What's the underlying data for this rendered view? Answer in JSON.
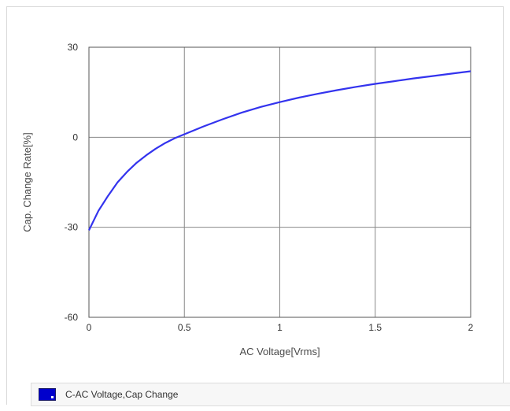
{
  "chart_data": {
    "type": "line",
    "title": "",
    "xlabel": "AC Voltage[Vrms]",
    "ylabel": "Cap. Change Rate[%]",
    "xlim": [
      0,
      2
    ],
    "ylim": [
      -60,
      30
    ],
    "xticks": [
      "0",
      "0.5",
      "1",
      "1.5",
      "2"
    ],
    "yticks": [
      "30",
      "0",
      "-30",
      "-60"
    ],
    "grid": true,
    "legend_position": "bottom",
    "series": [
      {
        "name": "C-AC Voltage,Cap Change",
        "color": "#3333ee",
        "x": [
          0,
          0.05,
          0.1,
          0.15,
          0.2,
          0.25,
          0.3,
          0.35,
          0.4,
          0.45,
          0.5,
          0.6,
          0.7,
          0.8,
          0.9,
          1.0,
          1.1,
          1.2,
          1.3,
          1.4,
          1.5,
          1.6,
          1.7,
          1.8,
          1.9,
          2.0
        ],
        "y": [
          -31,
          -24.5,
          -19.5,
          -15,
          -11.5,
          -8.5,
          -6,
          -3.8,
          -1.9,
          -0.3,
          1,
          3.6,
          6,
          8.2,
          10.1,
          11.7,
          13.2,
          14.5,
          15.7,
          16.8,
          17.8,
          18.7,
          19.6,
          20.4,
          21.2,
          22
        ]
      }
    ]
  },
  "legend": {
    "label": "C-AC Voltage,Cap Change",
    "swatch_color": "#0000cc"
  }
}
